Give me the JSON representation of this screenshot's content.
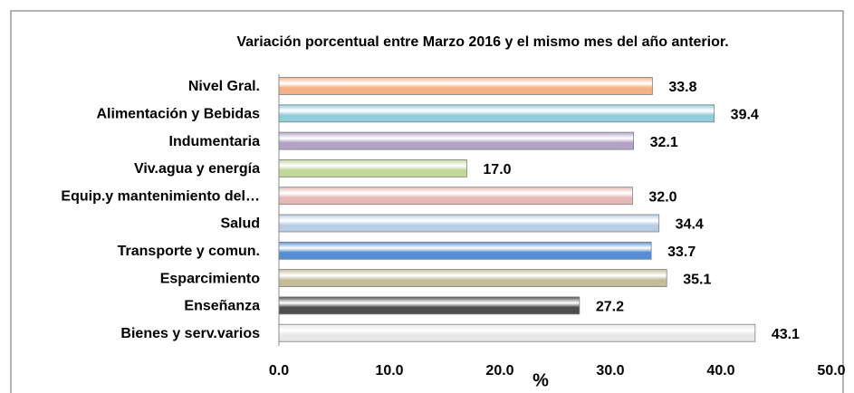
{
  "chart_data": {
    "type": "bar",
    "orientation": "horizontal",
    "title": "Variación porcentual entre Marzo 2016 y el mismo  mes del año anterior.",
    "xlabel": "%",
    "categories": [
      "Nivel Gral.",
      "Alimentación y Bebidas",
      "Indumentaria",
      "Viv.agua y energía",
      "Equip.y mantenimiento del…",
      "Salud",
      "Transporte y comun.",
      "Esparcimiento",
      "Enseñanza",
      "Bienes y serv.varios"
    ],
    "values": [
      33.8,
      39.4,
      32.1,
      17.0,
      32.0,
      34.4,
      33.7,
      35.1,
      27.2,
      43.1
    ],
    "value_labels": [
      "33.8",
      "39.4",
      "32.1",
      "17.0",
      "32.0",
      "34.4",
      "33.7",
      "35.1",
      "27.2",
      "43.1"
    ],
    "colors": [
      "#f4b183",
      "#92cddc",
      "#b3a2c7",
      "#c3d69b",
      "#e6b9b8",
      "#b9cde5",
      "#558ed5",
      "#c4bd97",
      "#4d4d4d",
      "#e8e8e8"
    ],
    "xlim": [
      0,
      50
    ],
    "xticks": [
      {
        "value": 0,
        "label": "0.0"
      },
      {
        "value": 10,
        "label": "10.0"
      },
      {
        "value": 20,
        "label": "20.0"
      },
      {
        "value": 30,
        "label": "30.0"
      },
      {
        "value": 40,
        "label": "40.0"
      },
      {
        "value": 50,
        "label": "50.0"
      }
    ],
    "grid": false
  }
}
